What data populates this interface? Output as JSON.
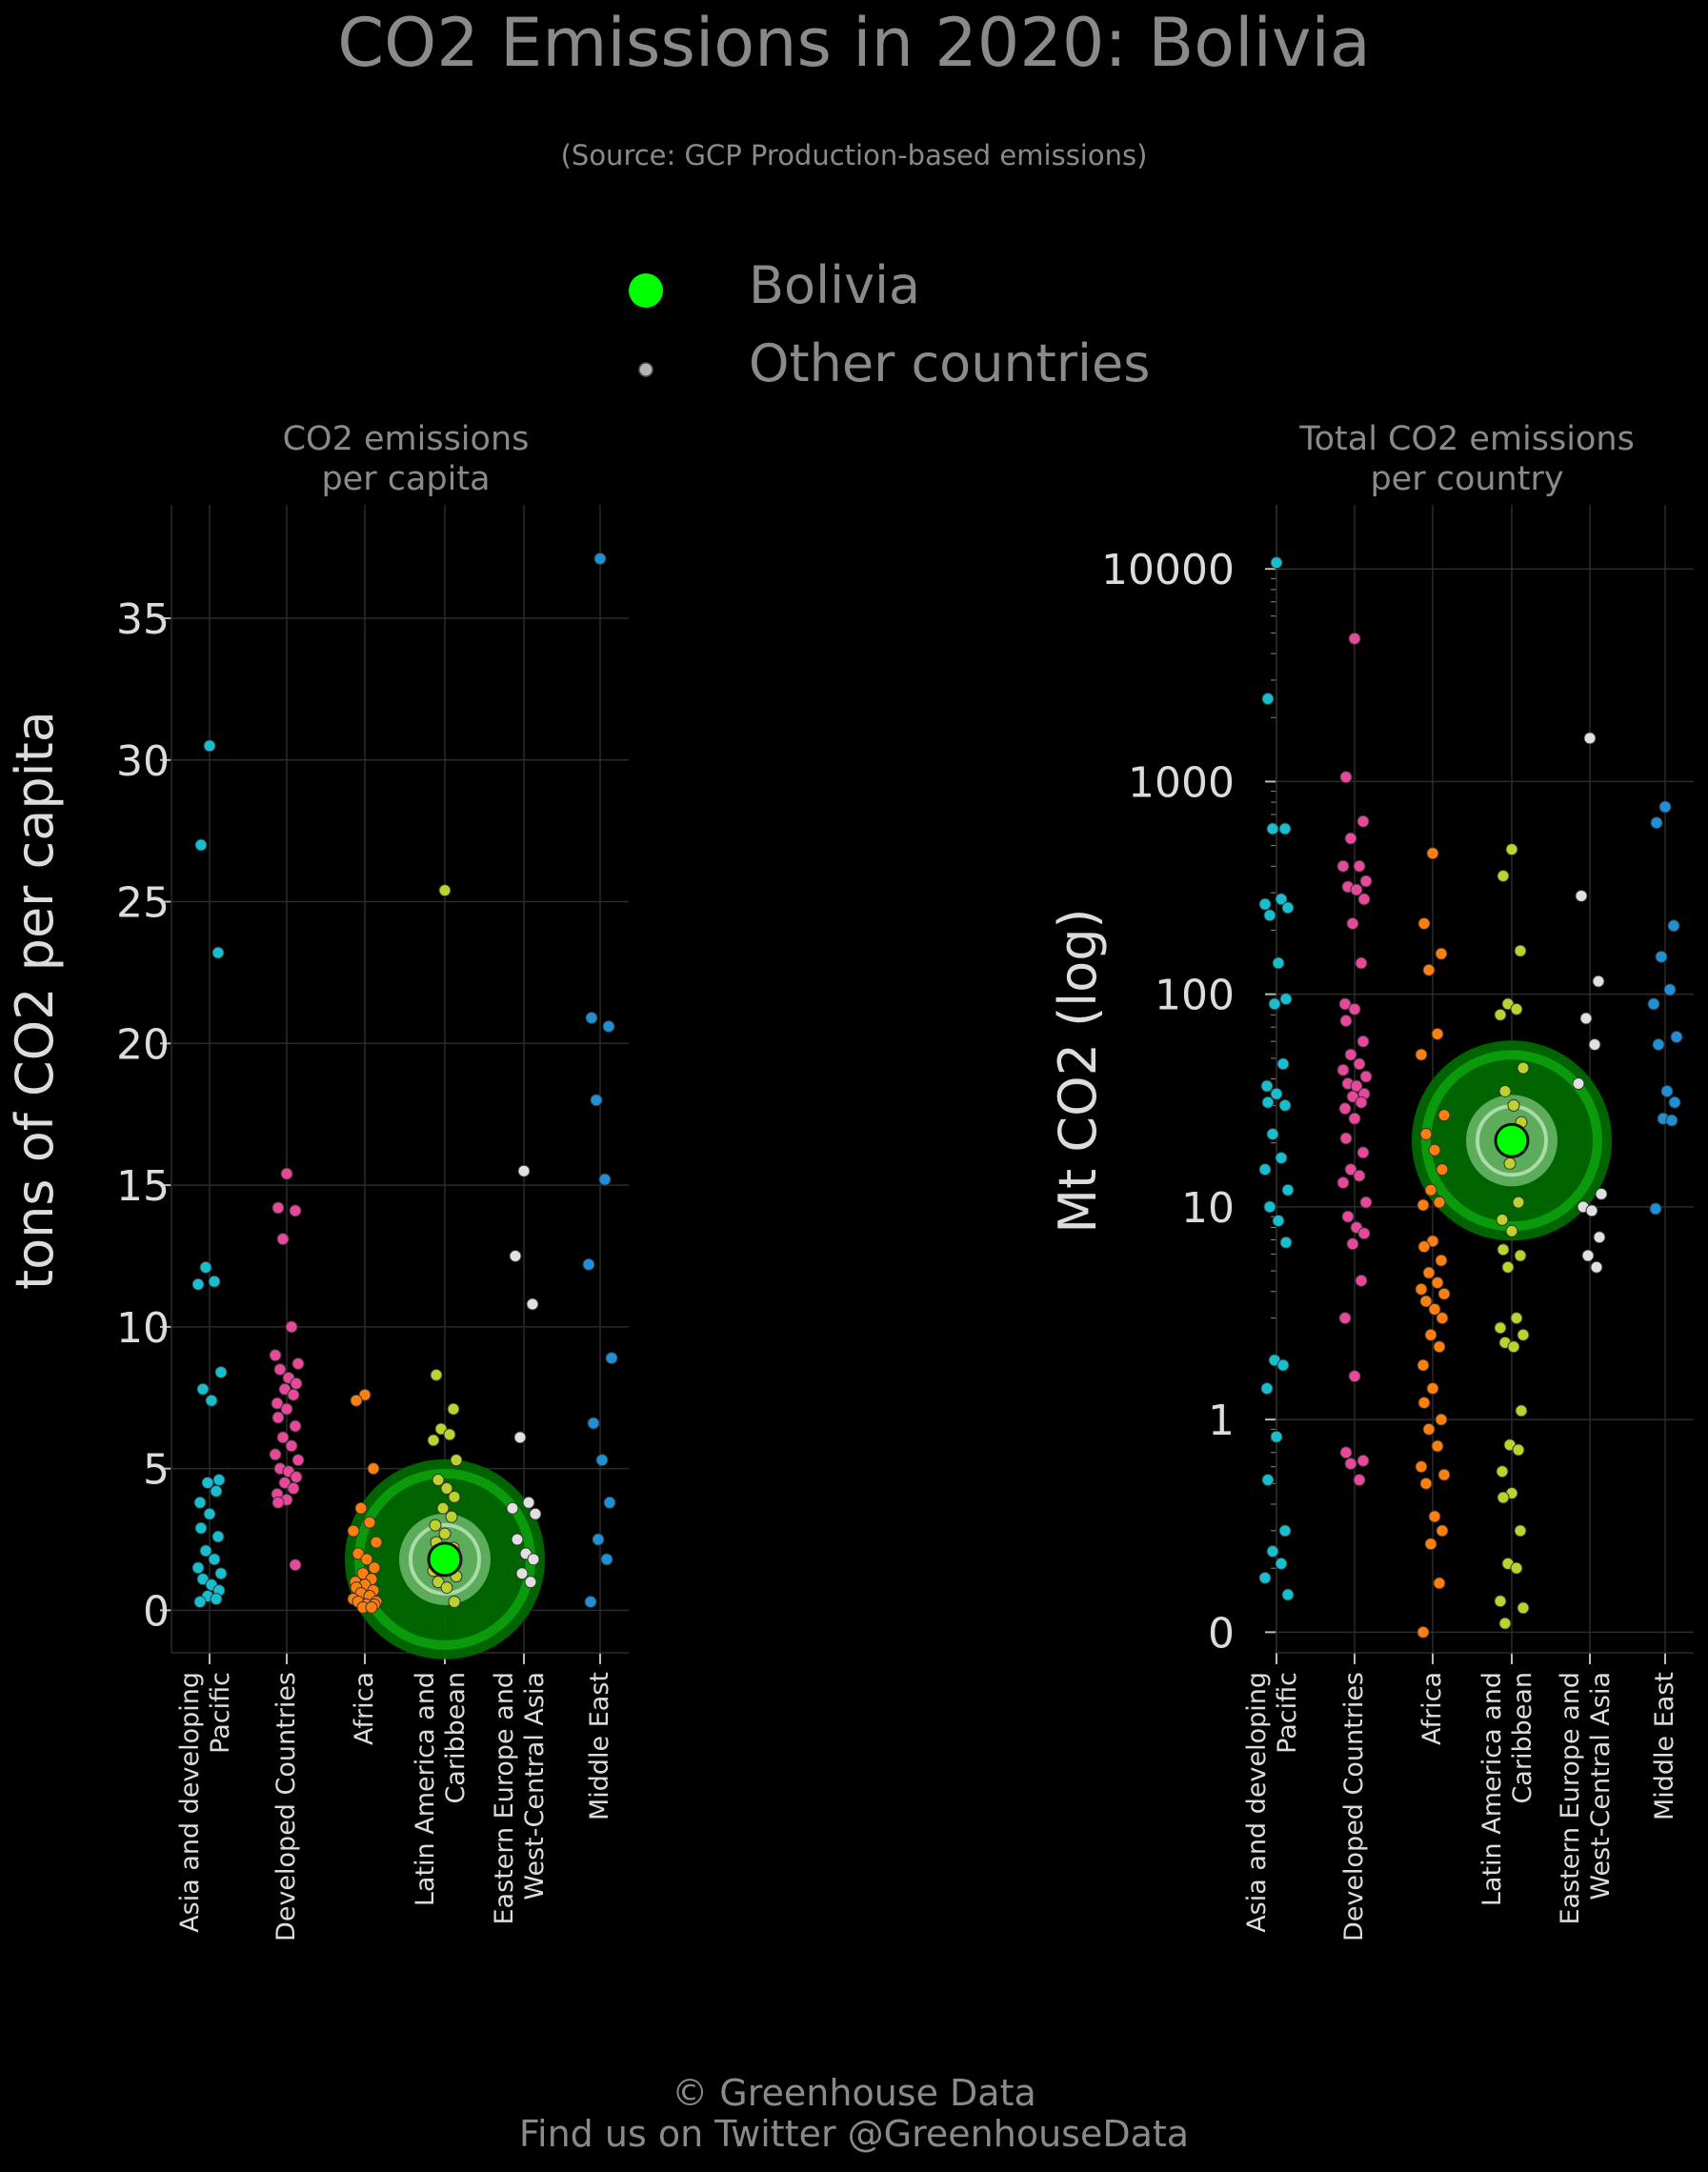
{
  "title": "CO2 Emissions in 2020: Bolivia",
  "subtitle": "(Source: GCP Production-based emissions)",
  "legend": [
    {
      "label": "Bolivia",
      "color": "#00ff00"
    },
    {
      "label": "Other countries",
      "color": "#c8c8c8"
    }
  ],
  "footer": {
    "line1": "© Greenhouse Data",
    "line2": "Find us on Twitter @GreenhouseData"
  },
  "chart_data": [
    {
      "type": "scatter",
      "title": "CO2 emissions\nper capita",
      "ylabel": "tons of CO2 per capita",
      "xlabel": "",
      "scale": "linear",
      "ylim": [
        -1.5,
        39
      ],
      "yticks": [
        0,
        5,
        10,
        15,
        20,
        25,
        30,
        35
      ],
      "ytick_labels": [
        "0",
        "5",
        "10",
        "15",
        "20",
        "25",
        "30",
        "35"
      ],
      "grid": true,
      "categories": [
        "Asia and developing\nPacific",
        "Developed Countries",
        "Africa",
        "Latin America and\nCaribbean",
        "Eastern Europe and\nWest-Central Asia",
        "Middle East"
      ],
      "colors": [
        "#17becf",
        "#e7489a",
        "#ff7f0e",
        "#bcd22f",
        "#e0e0e0",
        "#1f8fd6"
      ],
      "series": [
        {
          "values": [
            30.5,
            27.0,
            23.2,
            12.1,
            11.6,
            11.5,
            8.4,
            7.8,
            7.4,
            4.6,
            4.5,
            4.2,
            3.8,
            3.4,
            2.9,
            2.6,
            2.1,
            1.8,
            1.5,
            1.3,
            1.1,
            0.9,
            0.7,
            0.5,
            0.4,
            0.3
          ]
        },
        {
          "values": [
            15.4,
            14.2,
            14.1,
            13.1,
            10.0,
            9.0,
            8.7,
            8.5,
            8.2,
            8.0,
            7.8,
            7.6,
            7.3,
            7.1,
            6.8,
            6.5,
            6.1,
            5.8,
            5.5,
            5.3,
            5.0,
            4.9,
            4.7,
            4.5,
            4.3,
            4.1,
            3.9,
            3.8,
            1.6
          ]
        },
        {
          "values": [
            7.6,
            7.4,
            5.0,
            3.6,
            3.1,
            2.8,
            2.4,
            2.0,
            1.8,
            1.5,
            1.3,
            1.1,
            1.0,
            0.9,
            0.8,
            0.7,
            0.6,
            0.5,
            0.4,
            0.3,
            0.3,
            0.2,
            0.2,
            0.1,
            0.1
          ]
        },
        {
          "values": [
            25.4,
            8.3,
            7.1,
            6.4,
            6.2,
            6.0,
            5.3,
            4.6,
            4.3,
            4.0,
            3.6,
            3.3,
            3.0,
            2.7,
            2.4,
            2.2,
            1.9,
            1.7,
            1.4,
            1.2,
            1.0,
            0.8,
            0.3
          ]
        },
        {
          "values": [
            15.5,
            12.5,
            10.8,
            6.1,
            3.8,
            3.6,
            3.4,
            2.5,
            2.0,
            1.8,
            1.3,
            1.0
          ]
        },
        {
          "values": [
            37.1,
            20.9,
            20.6,
            18.0,
            15.2,
            12.2,
            8.9,
            6.6,
            5.3,
            3.8,
            2.5,
            1.8,
            0.3
          ]
        }
      ],
      "highlight": {
        "label": "Bolivia",
        "category_index": 3,
        "value": 1.8
      }
    },
    {
      "type": "scatter",
      "title": "Total CO2 emissions\nper country",
      "ylabel": "Mt CO2 (log)",
      "xlabel": "",
      "scale": "log",
      "ylim": [
        0.08,
        20000
      ],
      "yticks": [
        0.1,
        1,
        10,
        100,
        1000,
        10000
      ],
      "ytick_labels": [
        "0",
        "1",
        "10",
        "100",
        "1000",
        "10000"
      ],
      "grid": true,
      "categories": [
        "Asia and developing\nPacific",
        "Developed Countries",
        "Africa",
        "Latin America and\nCaribbean",
        "Eastern Europe and\nWest-Central Asia",
        "Middle East"
      ],
      "colors": [
        "#17becf",
        "#e7489a",
        "#ff7f0e",
        "#bcd22f",
        "#e0e0e0",
        "#1f8fd6"
      ],
      "series": [
        {
          "values": [
            10700,
            2450,
            600,
            600,
            280,
            265,
            255,
            235,
            140,
            95,
            90,
            47,
            37,
            34,
            31,
            30,
            22,
            17,
            15,
            12,
            10,
            8.6,
            6.8,
            1.9,
            1.8,
            1.4,
            0.83,
            0.52,
            0.3,
            0.24,
            0.21,
            0.18,
            0.15
          ]
        },
        {
          "values": [
            4700,
            1050,
            650,
            540,
            400,
            400,
            340,
            320,
            310,
            280,
            215,
            140,
            90,
            85,
            75,
            60,
            52,
            47,
            44,
            41,
            38,
            37,
            34,
            33,
            31,
            29,
            26,
            21,
            18,
            15,
            14,
            13,
            10.5,
            9,
            8,
            7.5,
            6.7,
            4.5,
            3.0,
            1.6,
            0.7,
            0.64,
            0.62,
            0.52
          ]
        },
        {
          "values": [
            460,
            215,
            155,
            130,
            65,
            52,
            27,
            22,
            18.5,
            15,
            12,
            10.5,
            10.2,
            6.9,
            6.5,
            5.6,
            4.9,
            4.4,
            4.1,
            3.9,
            3.6,
            3.3,
            3.0,
            2.5,
            2.2,
            1.8,
            1.4,
            1.2,
            1.0,
            0.9,
            0.75,
            0.6,
            0.55,
            0.5,
            0.35,
            0.3,
            0.26,
            0.17,
            0.1
          ]
        },
        {
          "values": [
            480,
            360,
            160,
            90,
            85,
            80,
            45,
            35,
            30,
            25,
            16,
            10.5,
            8.7,
            7.7,
            6.3,
            5.9,
            5.2,
            3.0,
            2.7,
            2.5,
            2.3,
            2.2,
            1.1,
            0.76,
            0.72,
            0.57,
            0.45,
            0.43,
            0.3,
            0.21,
            0.2,
            0.14,
            0.13,
            0.11
          ]
        },
        {
          "values": [
            1600,
            290,
            115,
            77,
            58,
            38,
            11.5,
            10,
            9.6,
            7.2,
            5.9,
            5.2
          ]
        },
        {
          "values": [
            760,
            640,
            210,
            150,
            105,
            90,
            63,
            58,
            35,
            31,
            26,
            25.5,
            9.8
          ]
        }
      ],
      "highlight": {
        "label": "Bolivia",
        "category_index": 3,
        "value": 20.5
      }
    }
  ]
}
